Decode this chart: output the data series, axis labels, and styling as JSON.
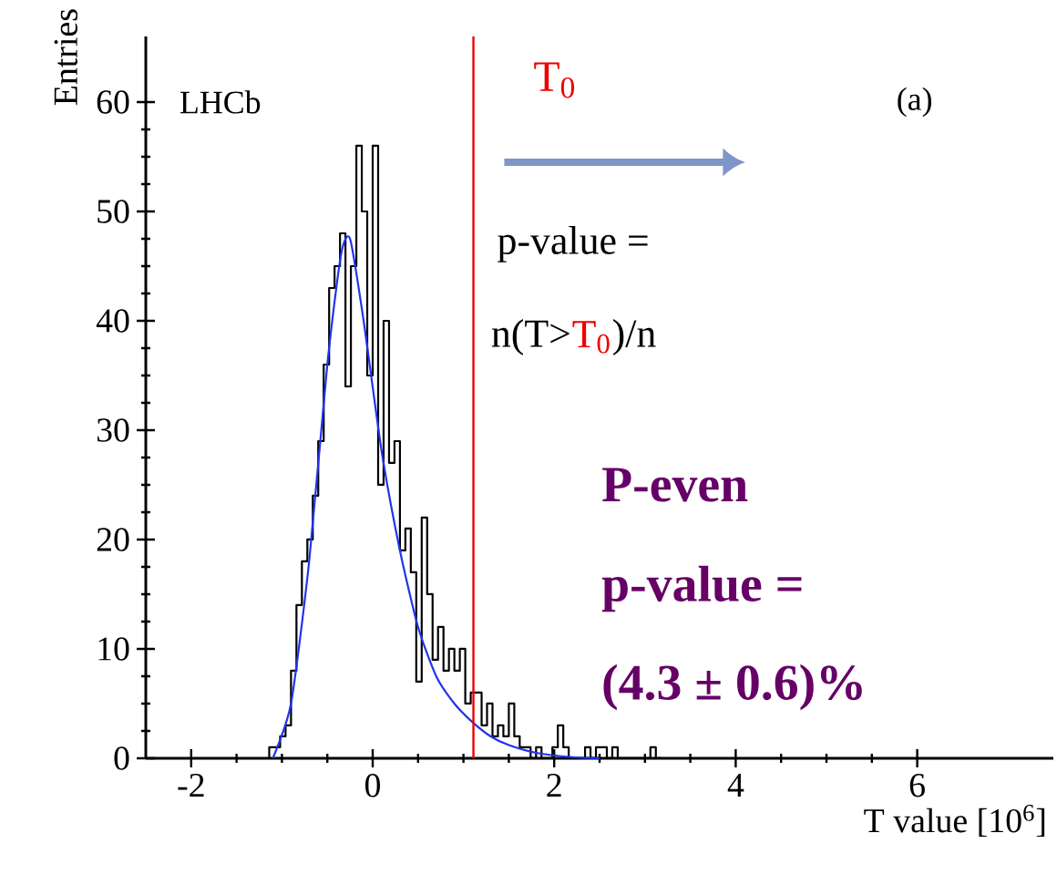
{
  "chart_data": {
    "type": "histogram",
    "xlabel": "T value [10$^{6}$]",
    "ylabel": "Entries",
    "bins": [
      -1.14,
      -1.08,
      -1.02,
      -0.96,
      -0.9,
      -0.84,
      -0.78,
      -0.72,
      -0.66,
      -0.6,
      -0.54,
      -0.48,
      -0.42,
      -0.36,
      -0.3,
      -0.24,
      -0.18,
      -0.12,
      -0.06,
      0.0,
      0.06,
      0.12,
      0.18,
      0.24,
      0.3,
      0.36,
      0.42,
      0.48,
      0.54,
      0.6,
      0.66,
      0.72,
      0.78,
      0.84,
      0.9,
      0.96,
      1.02,
      1.08,
      1.14,
      1.2,
      1.26,
      1.32,
      1.38,
      1.44,
      1.5,
      1.56,
      1.62,
      1.68,
      1.74,
      1.8,
      1.86,
      1.92,
      1.98,
      2.04,
      2.1,
      2.16,
      2.22,
      2.28,
      2.34,
      2.4,
      2.46,
      2.52,
      2.58,
      2.64,
      2.7,
      2.76,
      2.82,
      2.88,
      2.94,
      3.0,
      3.06,
      3.12,
      3.18
    ],
    "values": [
      1,
      1,
      2,
      3,
      8,
      14,
      18,
      20,
      24,
      29,
      36,
      43,
      45,
      48,
      34,
      45,
      56,
      50,
      35,
      56,
      25,
      40,
      27,
      29,
      19,
      21,
      17,
      7,
      22,
      15,
      9,
      12,
      8,
      10,
      8,
      10,
      5,
      6,
      6,
      3,
      5,
      2,
      3,
      2,
      5,
      2,
      1,
      1,
      0,
      1,
      0,
      0,
      1,
      3,
      1,
      0,
      0,
      0,
      1,
      0,
      1,
      1,
      0,
      1,
      0,
      0,
      0,
      0,
      0,
      0,
      1,
      0
    ],
    "color": "#000000",
    "series": [
      {
        "type": "line",
        "color": "#2233ee",
        "x": [
          -1.1,
          -0.9,
          -0.7,
          -0.5,
          -0.35,
          -0.25,
          -0.1,
          0.1,
          0.3,
          0.5,
          0.7,
          0.9,
          1.1,
          1.3,
          1.5,
          1.8,
          2.2,
          2.5
        ],
        "values": [
          0,
          5,
          18,
          36,
          46,
          47.5,
          40,
          28,
          19,
          12,
          7.5,
          5,
          3.3,
          2,
          1.2,
          0.5,
          0.1,
          0
        ]
      }
    ],
    "ref_lines": [
      {
        "axis": "x",
        "value": 1.11,
        "color": "#ee0000"
      }
    ],
    "annotations": [
      "LHCb",
      "(a)",
      "T$_{0}$",
      "p-value =",
      "n(T>",
      "T$_{0}$",
      ")/n",
      "P-even",
      "p-value =",
      "(4.3 ± 0.6)%"
    ],
    "xlim": [
      -2.5,
      7.5
    ],
    "ylim": [
      0,
      66
    ],
    "xticks": [
      -2,
      0,
      2,
      4,
      6
    ],
    "yticks": [
      0,
      10,
      20,
      30,
      40,
      50,
      60
    ]
  }
}
